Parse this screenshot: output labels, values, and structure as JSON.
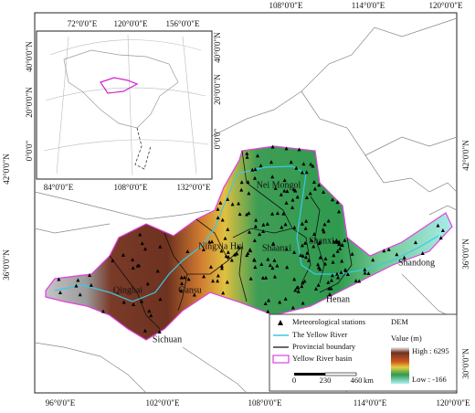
{
  "frame": {
    "top_labels": [
      "108°0'0\"E",
      "114°0'0\"E",
      "120°0'0\"E"
    ],
    "bottom_labels": [
      "96°0'0\"E",
      "102°0'0\"E",
      "108°0'0\"E",
      "114°0'0\"E",
      "120°0'0\"E"
    ],
    "left_labels": [
      "42°0'0\"N",
      "36°0'0\"N"
    ],
    "right_labels": [
      "42°0'0\"N",
      "36°0'0\"N",
      "30°0'0\"N"
    ]
  },
  "inset": {
    "top_labels": [
      "72°0'0\"E",
      "120°0'0\"E",
      "156°0'0\"E"
    ],
    "bottom_labels": [
      "84°0'0\"E",
      "108°0'0\"E",
      "132°0'0\"E"
    ],
    "left_labels": [
      "40°0'0\"N",
      "20°0'0\"N",
      "0°0'0\""
    ],
    "right_labels": [
      "40°0'0\"N",
      "20°0'0\"N",
      "0°0'0\""
    ]
  },
  "regions": [
    "Nei Mongol",
    "Ningxia Hui",
    "Shaanxi",
    "Shanxi",
    "Shandong",
    "Henan",
    "Qinghai",
    "Gansu",
    "Sichuan"
  ],
  "legend": {
    "stations": "Meteorological stations",
    "river": "The Yellow River",
    "boundary": "Provincial boundary",
    "basin": "Yellow River basin",
    "dem_title": "DEM",
    "value_title": "Value (m)",
    "high": "High : 6295",
    "low": "Low : -166",
    "scale_ticks": [
      "0",
      "230",
      "460"
    ],
    "scale_unit": "km"
  }
}
